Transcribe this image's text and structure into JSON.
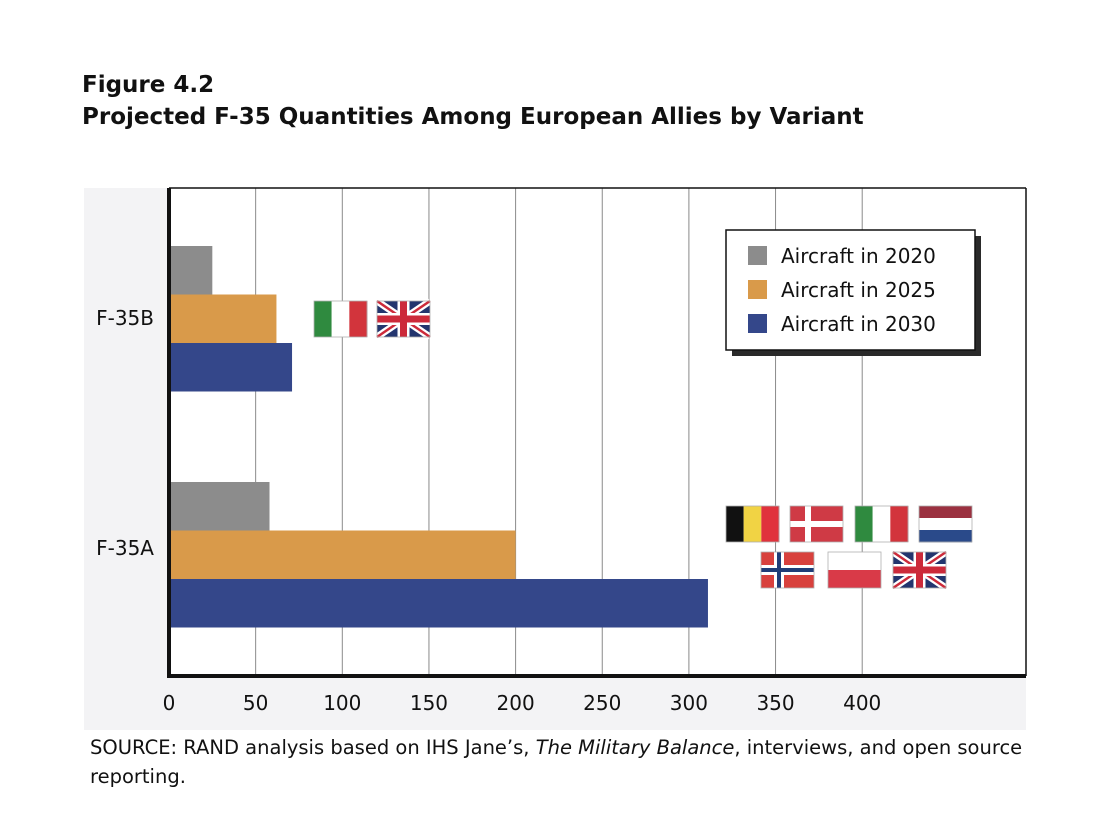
{
  "figure": {
    "label": "Figure 4.2",
    "title": "Projected F-35 Quantities Among European Allies by Variant"
  },
  "source": {
    "prefix": "SOURCE: RAND analysis based on IHS Jane’s, ",
    "italic": "The Military Balance",
    "suffix": ", interviews, and open source reporting."
  },
  "chart_data": {
    "type": "bar",
    "orientation": "horizontal",
    "title": "Projected F-35 Quantities Among European Allies by Variant",
    "categories": [
      "F-35B",
      "F-35A"
    ],
    "series": [
      {
        "name": "Aircraft in 2020",
        "color": "#8c8c8c",
        "values": [
          25,
          58
        ]
      },
      {
        "name": "Aircraft in 2025",
        "color": "#d99a4a",
        "values": [
          62,
          200
        ]
      },
      {
        "name": "Aircraft in 2030",
        "color": "#34478a",
        "values": [
          71,
          311
        ]
      }
    ],
    "x_ticks": [
      0,
      50,
      100,
      150,
      200,
      250,
      300,
      350,
      400
    ],
    "xlim": [
      0,
      495
    ],
    "xlabel": "",
    "ylabel": "",
    "grid": true,
    "legend_position": "top-right",
    "annotations": [
      {
        "category": "F-35B",
        "countries": [
          "Italy",
          "United Kingdom"
        ]
      },
      {
        "category": "F-35A",
        "countries": [
          "Belgium",
          "Denmark",
          "Italy",
          "Netherlands",
          "Norway",
          "Poland",
          "United Kingdom"
        ]
      }
    ]
  }
}
